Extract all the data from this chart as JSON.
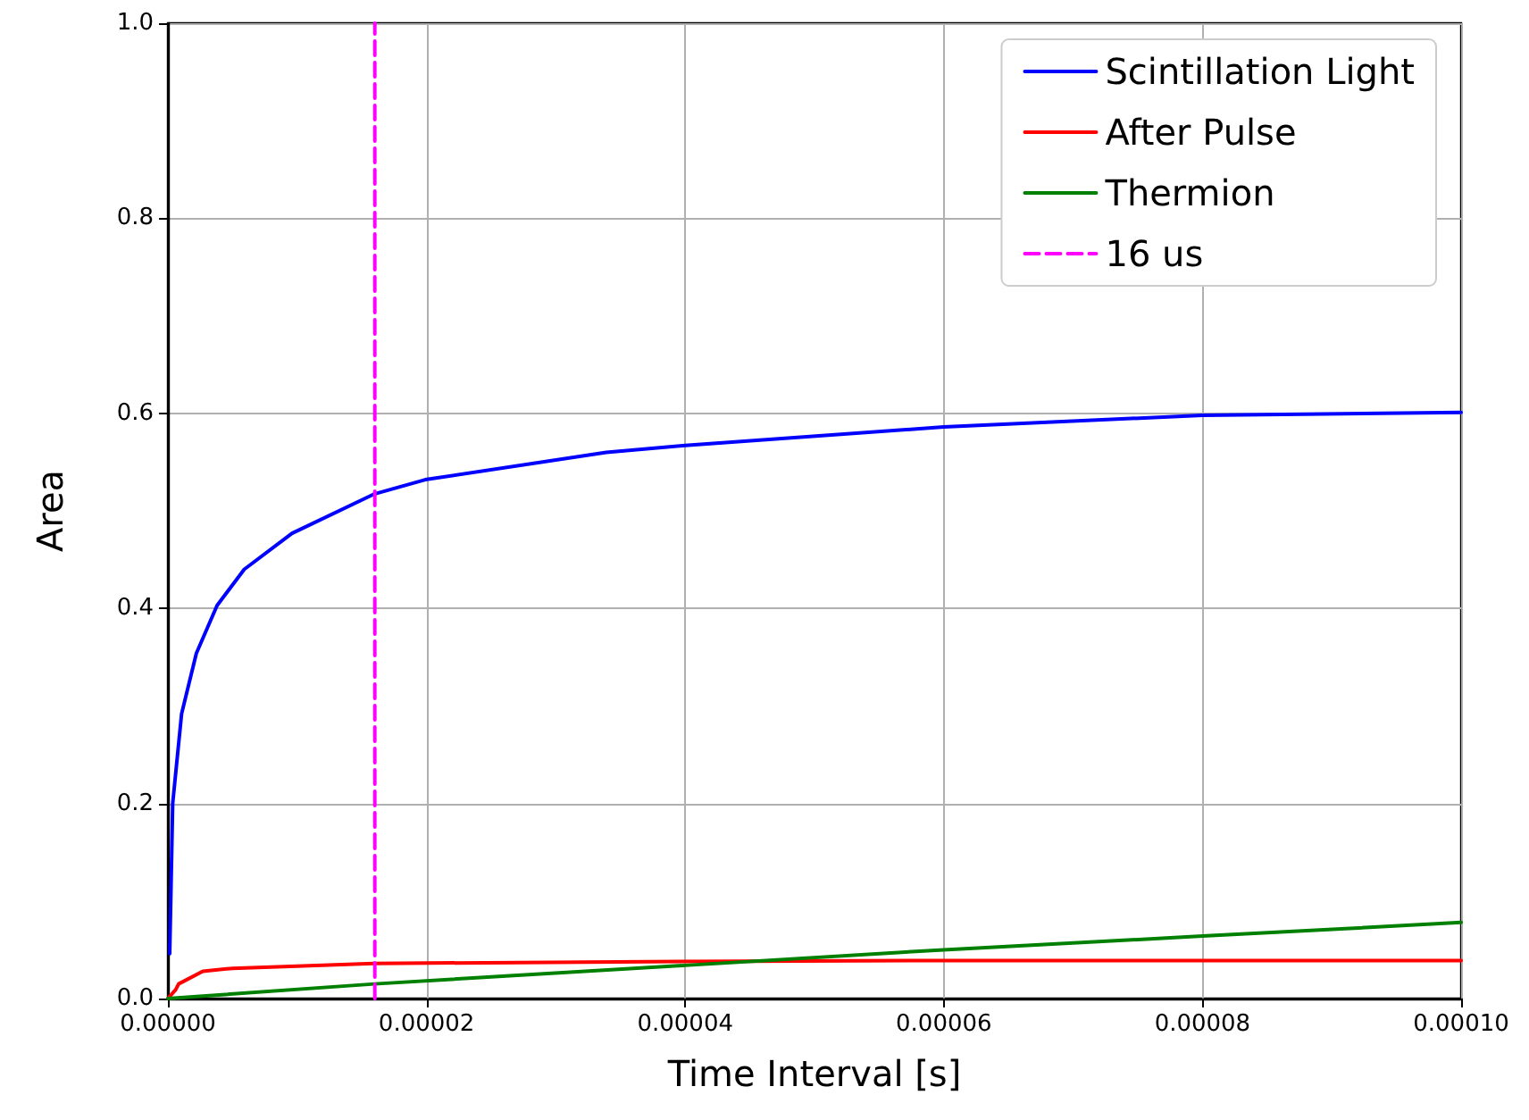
{
  "chart_data": {
    "type": "line",
    "xlabel": "Time Interval [s]",
    "ylabel": "Area",
    "xlim": [
      0,
      0.0001
    ],
    "xticks": [
      {
        "value": 0,
        "label": "0.00000"
      },
      {
        "value": 2e-05,
        "label": "0.00002"
      },
      {
        "value": 4e-05,
        "label": "0.00004"
      },
      {
        "value": 6e-05,
        "label": "0.00006"
      },
      {
        "value": 8e-05,
        "label": "0.00008"
      },
      {
        "value": 0.0001,
        "label": "0.00010"
      }
    ],
    "ylim": [
      0,
      1
    ],
    "yticks": [
      {
        "value": 0,
        "label": "0.0"
      },
      {
        "value": 0.2,
        "label": "0.2"
      },
      {
        "value": 0.4,
        "label": "0.4"
      },
      {
        "value": 0.6,
        "label": "0.6"
      },
      {
        "value": 0.8,
        "label": "0.8"
      },
      {
        "value": 1,
        "label": "1.0"
      }
    ],
    "grid": true,
    "legend": "top right",
    "marker": "none",
    "line_style": "solid",
    "series": [
      {
        "name": "Scintillation Light",
        "color": "#0000ff",
        "x": [
          1.4e-07,
          3.7e-07,
          1.06e-06,
          2.2e-06,
          3.8e-06,
          5.9e-06,
          9.6e-06,
          1.59e-05,
          1.99e-05,
          3.39e-05,
          4e-05,
          6e-05,
          8e-05,
          0.0001
        ],
        "values": [
          0.046,
          0.2,
          0.292,
          0.354,
          0.403,
          0.44,
          0.477,
          0.517,
          0.532,
          0.56,
          0.567,
          0.586,
          0.598,
          0.601
        ]
      },
      {
        "name": "After Pulse",
        "color": "#ff0000",
        "x": [
          0,
          6e-07,
          8.3e-07,
          2.7e-06,
          5e-06,
          1.59e-05,
          4e-05,
          6e-05,
          8e-05,
          0.0001
        ],
        "values": [
          0,
          0.009,
          0.015,
          0.028,
          0.031,
          0.036,
          0.038,
          0.039,
          0.039,
          0.039
        ]
      },
      {
        "name": "Thermion",
        "color": "#008000",
        "x": [
          0,
          1.6e-05,
          4e-05,
          6e-05,
          8e-05,
          0.0001
        ],
        "values": [
          0,
          0.015,
          0.034,
          0.05,
          0.064,
          0.078
        ]
      },
      {
        "name": "16 us",
        "color": "#ff00ff",
        "line_style": "dashed",
        "x": [
          1.6e-05,
          1.6e-05
        ],
        "values": [
          0,
          1
        ]
      }
    ]
  }
}
